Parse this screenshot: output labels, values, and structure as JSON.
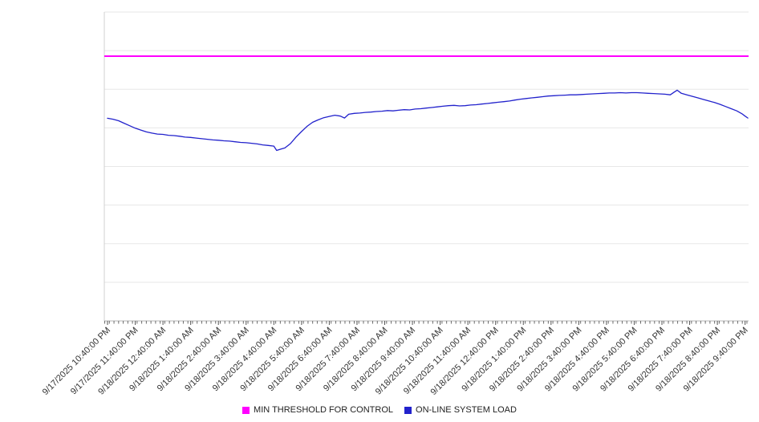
{
  "page": {
    "background": "#ffffff"
  },
  "chart_data": {
    "type": "line",
    "title": "",
    "xlabel": "",
    "ylabel": "",
    "grid": true,
    "legend_position": "bottom",
    "y_axis_tick_labels_visible": false,
    "ylim": [
      0,
      100
    ],
    "x_unit": "time, 1-hour major ticks with 10-minute minor ticks",
    "x_tick_labels": [
      "9/17/2025 10:40:00 PM",
      "9/17/2025 11:40:00 PM",
      "9/18/2025 12:40:00 AM",
      "9/18/2025 1:40:00 AM",
      "9/18/2025 2:40:00 AM",
      "9/18/2025 3:40:00 AM",
      "9/18/2025 4:40:00 AM",
      "9/18/2025 5:40:00 AM",
      "9/18/2025 6:40:00 AM",
      "9/18/2025 7:40:00 AM",
      "9/18/2025 8:40:00 AM",
      "9/18/2025 9:40:00 AM",
      "9/18/2025 10:40:00 AM",
      "9/18/2025 11:40:00 AM",
      "9/18/2025 12:40:00 PM",
      "9/18/2025 1:40:00 PM",
      "9/18/2025 2:40:00 PM",
      "9/18/2025 3:40:00 PM",
      "9/18/2025 4:40:00 PM",
      "9/18/2025 5:40:00 PM",
      "9/18/2025 6:40:00 PM",
      "9/18/2025 7:40:00 PM",
      "9/18/2025 8:40:00 PM",
      "9/18/2025 9:40:00 PM"
    ],
    "series": [
      {
        "name": "MIN THRESHOLD FOR CONTROL",
        "color": "#ff00ff",
        "type": "constant",
        "value": 85.7
      },
      {
        "name": "ON-LINE SYSTEM LOAD",
        "color": "#2222cc",
        "type": "line",
        "points": [
          [
            0,
            65.6
          ],
          [
            0.2,
            65.3
          ],
          [
            0.4,
            64.8
          ],
          [
            0.6,
            64.0
          ],
          [
            0.8,
            63.2
          ],
          [
            1,
            62.4
          ],
          [
            1.2,
            61.8
          ],
          [
            1.4,
            61.2
          ],
          [
            1.6,
            60.8
          ],
          [
            1.8,
            60.5
          ],
          [
            2,
            60.4
          ],
          [
            2.2,
            60.1
          ],
          [
            2.4,
            60.0
          ],
          [
            2.6,
            59.8
          ],
          [
            2.8,
            59.5
          ],
          [
            3,
            59.4
          ],
          [
            3.2,
            59.2
          ],
          [
            3.4,
            59.0
          ],
          [
            3.6,
            58.8
          ],
          [
            3.8,
            58.6
          ],
          [
            4,
            58.5
          ],
          [
            4.2,
            58.3
          ],
          [
            4.4,
            58.2
          ],
          [
            4.6,
            58.0
          ],
          [
            4.8,
            57.8
          ],
          [
            5,
            57.7
          ],
          [
            5.2,
            57.5
          ],
          [
            5.4,
            57.3
          ],
          [
            5.6,
            57.0
          ],
          [
            5.8,
            56.8
          ],
          [
            6,
            56.6
          ],
          [
            6.1,
            55.2
          ],
          [
            6.25,
            55.6
          ],
          [
            6.4,
            56.0
          ],
          [
            6.6,
            57.4
          ],
          [
            6.8,
            59.5
          ],
          [
            7,
            61.3
          ],
          [
            7.2,
            63.0
          ],
          [
            7.4,
            64.3
          ],
          [
            7.6,
            65.1
          ],
          [
            7.8,
            65.8
          ],
          [
            8,
            66.2
          ],
          [
            8.2,
            66.6
          ],
          [
            8.4,
            66.3
          ],
          [
            8.55,
            65.7
          ],
          [
            8.7,
            66.9
          ],
          [
            8.9,
            67.2
          ],
          [
            9.1,
            67.3
          ],
          [
            9.3,
            67.5
          ],
          [
            9.5,
            67.6
          ],
          [
            9.7,
            67.8
          ],
          [
            9.9,
            67.9
          ],
          [
            10.1,
            68.1
          ],
          [
            10.3,
            68.0
          ],
          [
            10.5,
            68.2
          ],
          [
            10.7,
            68.4
          ],
          [
            10.9,
            68.3
          ],
          [
            11.1,
            68.6
          ],
          [
            11.3,
            68.7
          ],
          [
            11.5,
            68.9
          ],
          [
            11.7,
            69.1
          ],
          [
            11.9,
            69.3
          ],
          [
            12.1,
            69.5
          ],
          [
            12.3,
            69.7
          ],
          [
            12.5,
            69.8
          ],
          [
            12.7,
            69.6
          ],
          [
            12.9,
            69.7
          ],
          [
            13.1,
            69.9
          ],
          [
            13.3,
            70.0
          ],
          [
            13.5,
            70.2
          ],
          [
            13.7,
            70.4
          ],
          [
            13.9,
            70.6
          ],
          [
            14.1,
            70.8
          ],
          [
            14.3,
            71.0
          ],
          [
            14.5,
            71.2
          ],
          [
            14.7,
            71.5
          ],
          [
            14.9,
            71.8
          ],
          [
            15.1,
            72.0
          ],
          [
            15.3,
            72.2
          ],
          [
            15.5,
            72.4
          ],
          [
            15.7,
            72.6
          ],
          [
            15.9,
            72.8
          ],
          [
            16.1,
            72.9
          ],
          [
            16.3,
            73.0
          ],
          [
            16.5,
            73.1
          ],
          [
            16.7,
            73.2
          ],
          [
            16.9,
            73.2
          ],
          [
            17.1,
            73.3
          ],
          [
            17.3,
            73.4
          ],
          [
            17.5,
            73.5
          ],
          [
            17.7,
            73.6
          ],
          [
            17.9,
            73.7
          ],
          [
            18.1,
            73.8
          ],
          [
            18.3,
            73.8
          ],
          [
            18.5,
            73.9
          ],
          [
            18.7,
            73.8
          ],
          [
            18.9,
            73.9
          ],
          [
            19.1,
            73.9
          ],
          [
            19.3,
            73.8
          ],
          [
            19.5,
            73.7
          ],
          [
            19.7,
            73.6
          ],
          [
            19.9,
            73.5
          ],
          [
            20.1,
            73.4
          ],
          [
            20.3,
            73.2
          ],
          [
            20.45,
            74.1
          ],
          [
            20.55,
            74.7
          ],
          [
            20.7,
            73.7
          ],
          [
            20.9,
            73.2
          ],
          [
            21.1,
            72.7
          ],
          [
            21.3,
            72.2
          ],
          [
            21.5,
            71.7
          ],
          [
            21.7,
            71.2
          ],
          [
            21.9,
            70.7
          ],
          [
            22.1,
            70.1
          ],
          [
            22.3,
            69.4
          ],
          [
            22.5,
            68.7
          ],
          [
            22.7,
            68.0
          ],
          [
            22.9,
            67.0
          ],
          [
            23.0,
            66.3
          ],
          [
            23.1,
            65.7
          ]
        ]
      }
    ]
  }
}
